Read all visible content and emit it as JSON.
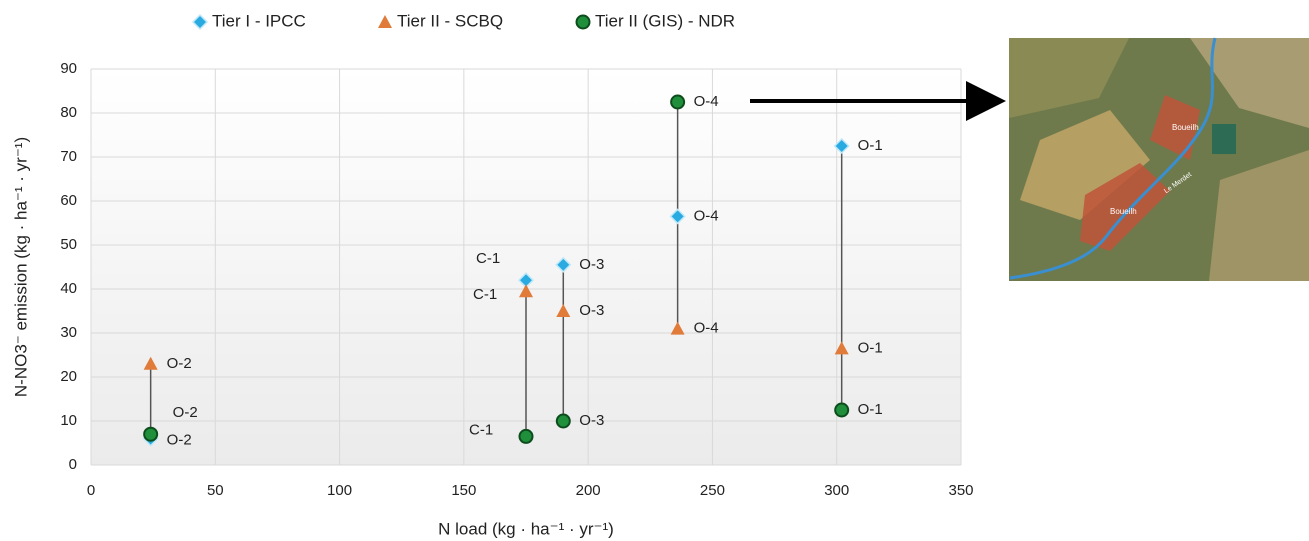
{
  "chart_data": {
    "type": "scatter",
    "x_label": "N load (kg · ha⁻¹ · yr⁻¹)",
    "y_label": "N-NO3⁻ emission  (kg · ha⁻¹ · yr⁻¹)",
    "xlim": [
      0,
      350
    ],
    "xticks": [
      0,
      50,
      100,
      150,
      200,
      250,
      300,
      350
    ],
    "ylim": [
      0,
      90
    ],
    "yticks": [
      0,
      10,
      20,
      30,
      40,
      50,
      60,
      70,
      80,
      90
    ],
    "grid": true,
    "legend": "top",
    "x": [
      24,
      175,
      190,
      236,
      302
    ],
    "series": [
      {
        "name": "Tier I - IPCC",
        "color": "#29abe2",
        "marker": "diamond",
        "values": [
          6,
          42,
          45.5,
          56.5,
          72.5
        ],
        "labels": [
          "O-2",
          "C-1",
          "O-3",
          "O-4",
          "O-1"
        ]
      },
      {
        "name": "Tier II - SCBQ",
        "color": "#e07b39",
        "marker": "triangle",
        "values": [
          23,
          39.5,
          35,
          31,
          26.5
        ],
        "labels": [
          "O-2",
          "C-1",
          "O-3",
          "O-4",
          "O-1"
        ]
      },
      {
        "name": "Tier II (GIS) - NDR",
        "color": "#1f8f3c",
        "marker": "circle",
        "values": [
          7,
          6.5,
          10,
          82.5,
          12.5
        ],
        "labels": [
          "O-2",
          "C-1",
          "O-3",
          "O-4",
          "O-1"
        ]
      }
    ]
  },
  "map_labels": [
    "Boueilh",
    "Boueilh",
    "Le Merdet"
  ]
}
